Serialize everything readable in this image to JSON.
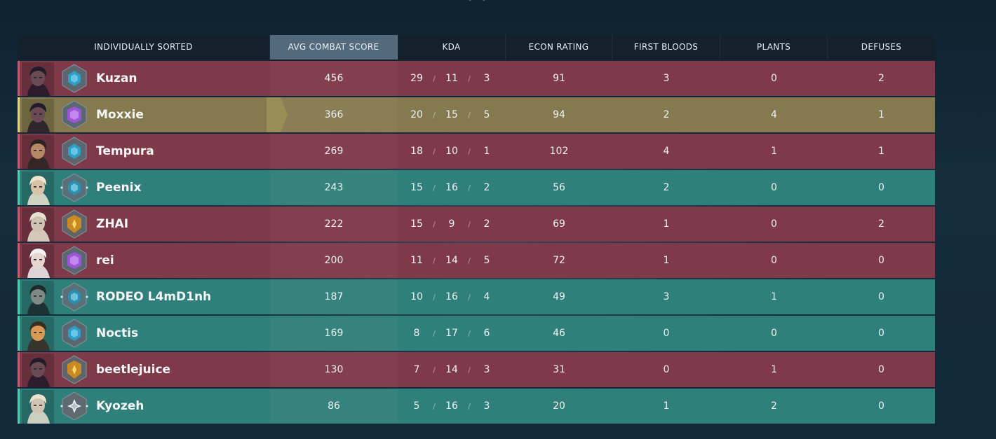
{
  "header": {
    "player": "INDIVIDUALLY SORTED",
    "acs": "AVG COMBAT SCORE",
    "kda": "KDA",
    "econ": "ECON RATING",
    "first_bloods": "FIRST BLOODS",
    "plants": "PLANTS",
    "defuses": "DEFUSES",
    "active_column": "acs"
  },
  "colors": {
    "enemy_row": "#7e3a48",
    "ally_row": "#2f7f7a",
    "self_row": "#857a4f",
    "enemy_edge": "#ea4c5d",
    "ally_edge": "#40d7b0",
    "self_edge": "#eed36a"
  },
  "players": [
    {
      "name": "Kuzan",
      "team": "red",
      "rank_icon": "diamond-rank-icon",
      "portrait": "agent-portrait-reyna",
      "acs": "456",
      "k": "29",
      "d": "11",
      "a": "3",
      "econ": "91",
      "fb": "3",
      "plants": "0",
      "defuses": "2"
    },
    {
      "name": "Moxxie",
      "team": "gold",
      "rank_icon": "ascendant-rank-icon",
      "portrait": "agent-portrait-reyna",
      "acs": "366",
      "k": "20",
      "d": "15",
      "a": "5",
      "econ": "94",
      "fb": "2",
      "plants": "4",
      "defuses": "1"
    },
    {
      "name": "Tempura",
      "team": "red",
      "rank_icon": "diamond-rank-icon",
      "portrait": "agent-portrait-chamber",
      "acs": "269",
      "k": "18",
      "d": "10",
      "a": "1",
      "econ": "102",
      "fb": "4",
      "plants": "1",
      "defuses": "1"
    },
    {
      "name": "Peenix",
      "team": "teal",
      "rank_icon": "platinum-rank-icon",
      "portrait": "agent-portrait-sova",
      "acs": "243",
      "k": "15",
      "d": "16",
      "a": "2",
      "econ": "56",
      "fb": "2",
      "plants": "0",
      "defuses": "0"
    },
    {
      "name": "ZHAI",
      "team": "red",
      "rank_icon": "gold-rank-icon",
      "portrait": "agent-portrait-cypher",
      "acs": "222",
      "k": "15",
      "d": "9",
      "a": "2",
      "econ": "69",
      "fb": "1",
      "plants": "0",
      "defuses": "2"
    },
    {
      "name": "rei",
      "team": "red",
      "rank_icon": "ascendant-rank-icon",
      "portrait": "agent-portrait-sage",
      "acs": "200",
      "k": "11",
      "d": "14",
      "a": "5",
      "econ": "72",
      "fb": "1",
      "plants": "0",
      "defuses": "0"
    },
    {
      "name": "RODEO L4mD1nh",
      "team": "teal",
      "rank_icon": "platinum-rank-icon",
      "portrait": "agent-portrait-viper",
      "acs": "187",
      "k": "10",
      "d": "16",
      "a": "4",
      "econ": "49",
      "fb": "3",
      "plants": "1",
      "defuses": "0"
    },
    {
      "name": "Noctis",
      "team": "teal",
      "rank_icon": "diamond-rank-icon",
      "portrait": "agent-portrait-kayo",
      "acs": "169",
      "k": "8",
      "d": "17",
      "a": "6",
      "econ": "46",
      "fb": "0",
      "plants": "0",
      "defuses": "0"
    },
    {
      "name": "beetlejuice",
      "team": "red",
      "rank_icon": "gold-rank-icon",
      "portrait": "agent-portrait-reyna",
      "acs": "130",
      "k": "7",
      "d": "14",
      "a": "3",
      "econ": "31",
      "fb": "0",
      "plants": "1",
      "defuses": "0"
    },
    {
      "name": "Kyozeh",
      "team": "teal",
      "rank_icon": "silver-rank-icon",
      "portrait": "agent-portrait-cypher",
      "acs": "86",
      "k": "5",
      "d": "16",
      "a": "3",
      "econ": "20",
      "fb": "1",
      "plants": "2",
      "defuses": "0"
    }
  ]
}
